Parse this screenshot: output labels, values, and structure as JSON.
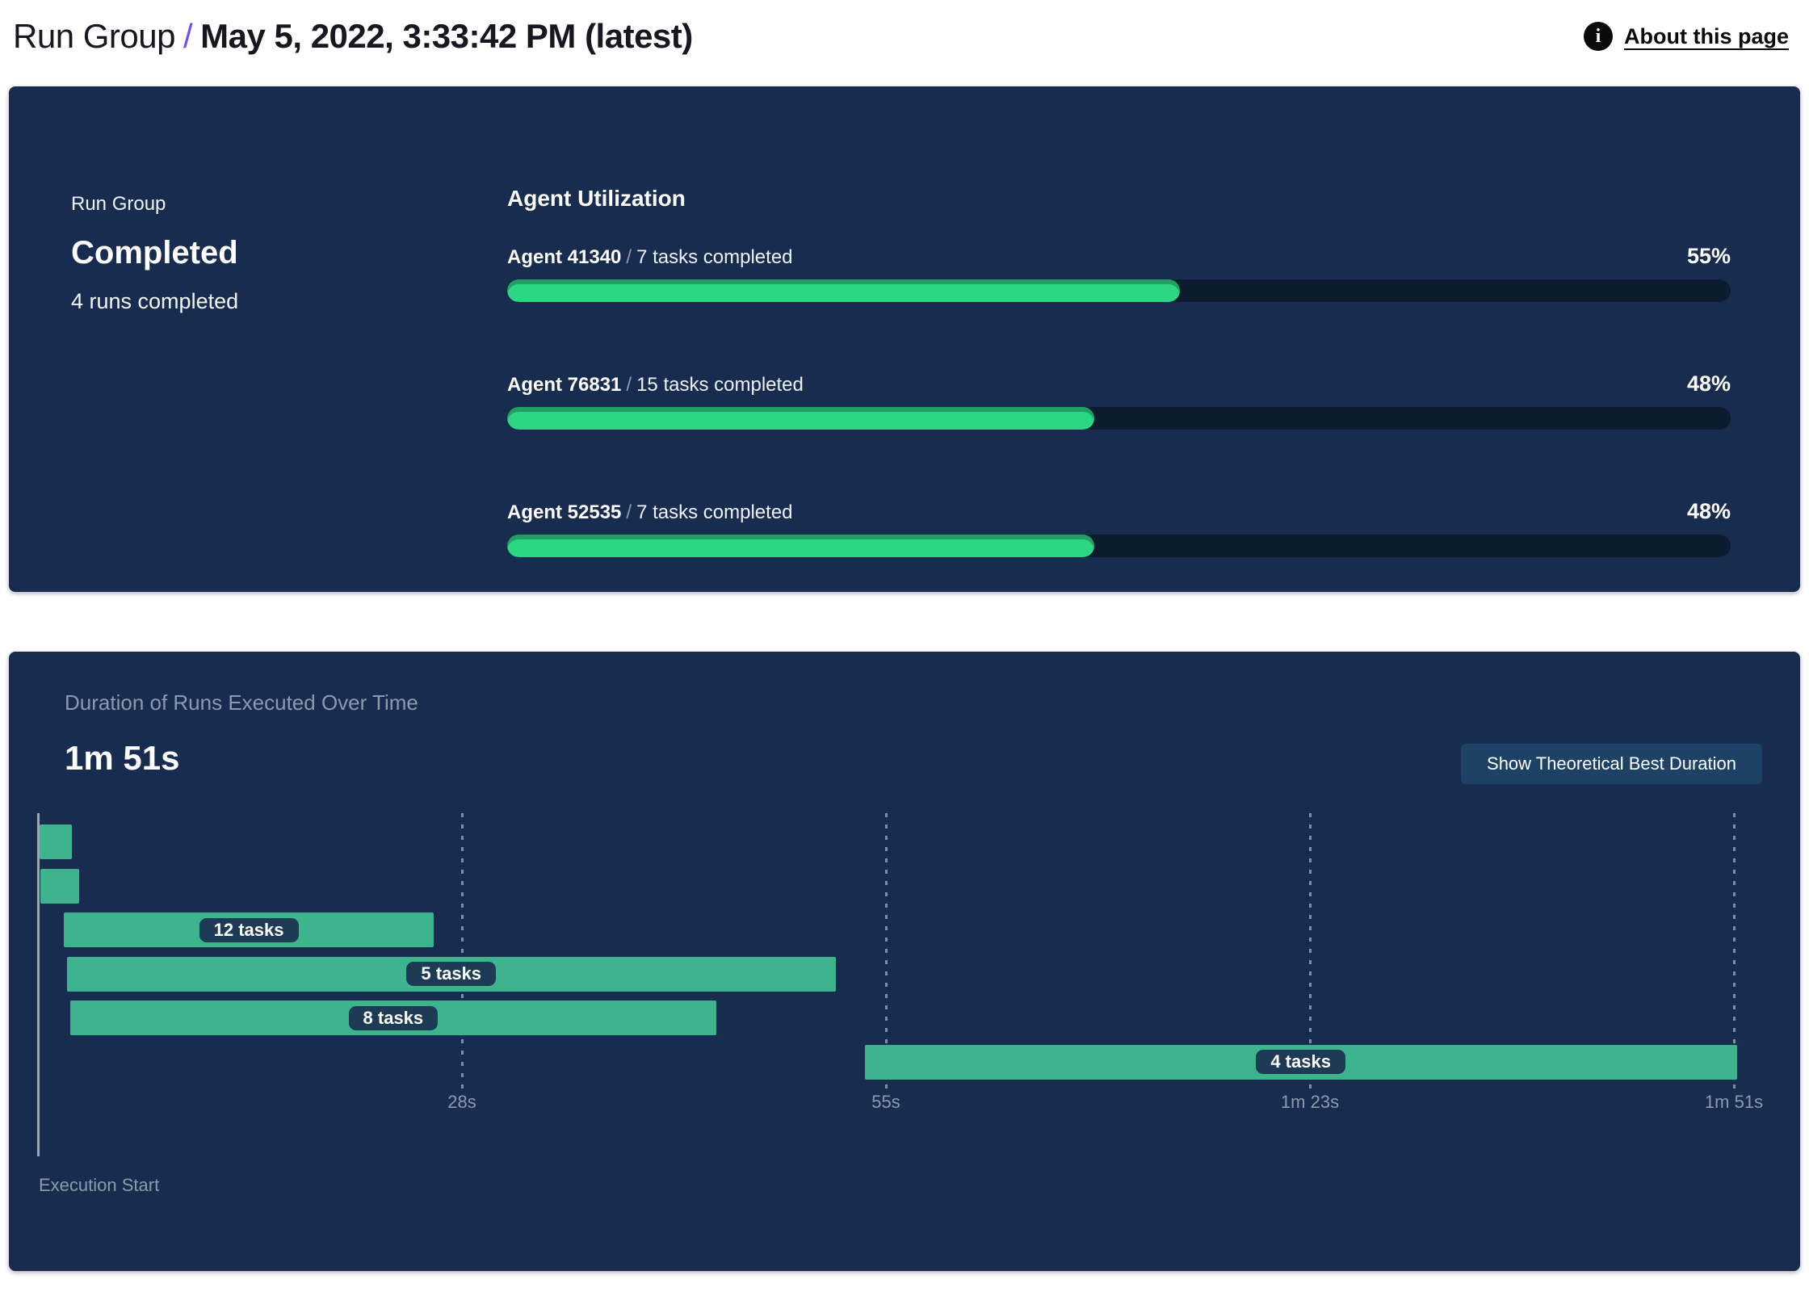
{
  "header": {
    "breadcrumb_root": "Run Group",
    "separator": "/",
    "title": "May 5, 2022, 3:33:42 PM (latest)",
    "about_link": "About this page",
    "info_icon_glyph": "i"
  },
  "summary_card": {
    "label": "Run Group",
    "status": "Completed",
    "runs_summary": "4 runs completed",
    "utilization": {
      "heading": "Agent Utilization",
      "agents": [
        {
          "name": "Agent 41340",
          "slash": "/",
          "tasks": "7 tasks completed",
          "percent": 55,
          "percent_display": "55%"
        },
        {
          "name": "Agent 76831",
          "slash": "/",
          "tasks": "15 tasks completed",
          "percent": 48,
          "percent_display": "48%"
        },
        {
          "name": "Agent 52535",
          "slash": "/",
          "tasks": "7 tasks completed",
          "percent": 48,
          "percent_display": "48%"
        }
      ]
    }
  },
  "duration_card": {
    "title": "Duration of Runs Executed Over Time",
    "total_duration": "1m 51s",
    "button_label": "Show Theoretical Best Duration",
    "axis_label": "Execution Start"
  },
  "chart_data": {
    "type": "gantt",
    "title": "Duration of Runs Executed Over Time",
    "total_duration_s": 111,
    "xlabel": "Execution Start",
    "x_ticks": [
      {
        "label": "28s",
        "s": 27.75
      },
      {
        "label": "55s",
        "s": 55.5
      },
      {
        "label": "1m 23s",
        "s": 83.25
      },
      {
        "label": "1m 51s",
        "s": 111
      }
    ],
    "runs": [
      {
        "start_s": 0.1,
        "end_s": 2.2,
        "label": ""
      },
      {
        "start_s": 0.15,
        "end_s": 2.7,
        "label": ""
      },
      {
        "start_s": 1.7,
        "end_s": 25.9,
        "label": "12 tasks"
      },
      {
        "start_s": 1.9,
        "end_s": 52.2,
        "label": "5 tasks"
      },
      {
        "start_s": 2.1,
        "end_s": 44.4,
        "label": "8 tasks"
      },
      {
        "start_s": 54.1,
        "end_s": 111.2,
        "label": "4 tasks"
      }
    ]
  },
  "colors": {
    "card_background": "#182c4f",
    "progress_fill": "#2dd683",
    "progress_track": "#0d1b2e",
    "gantt_bar": "#3db48d",
    "pill_background": "#1d3b55",
    "button_background": "#1d4266",
    "muted_text": "#8c9aaf",
    "accent_purple": "#7352e8"
  }
}
